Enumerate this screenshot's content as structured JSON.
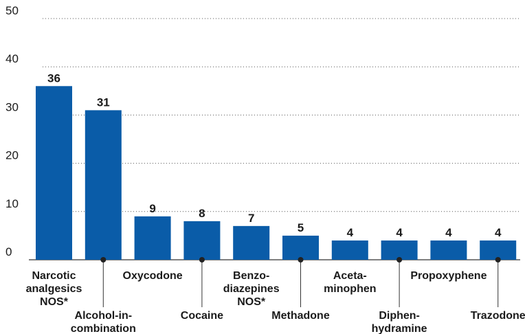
{
  "chart_data": {
    "type": "bar",
    "categories": [
      [
        "Narcotic",
        "analgesics",
        "NOS*"
      ],
      [
        "Alcohol-in-",
        "combination"
      ],
      [
        "Oxycodone"
      ],
      [
        "Cocaine"
      ],
      [
        "Benzo-",
        "diazepines",
        "NOS*"
      ],
      [
        "Methadone"
      ],
      [
        "Aceta-",
        "minophen"
      ],
      [
        "Diphen-",
        "hydramine"
      ],
      [
        "Propoxyphene"
      ],
      [
        "Trazodone"
      ]
    ],
    "values": [
      36,
      31,
      9,
      8,
      7,
      5,
      4,
      4,
      4,
      4
    ],
    "color": "#0a5ca8",
    "ylim": [
      0,
      50
    ],
    "yticks": [
      0,
      10,
      20,
      30,
      40,
      50
    ],
    "grid": true
  }
}
